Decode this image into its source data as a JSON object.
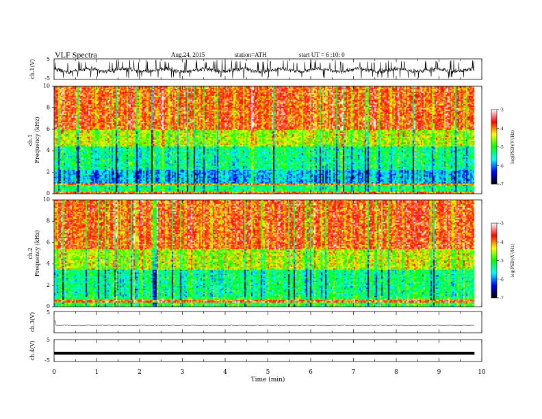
{
  "header": {
    "title": "VLF  Spectra",
    "date": "Aug.24, 2015",
    "station": "station=ATH",
    "start": "start  UT  =   6  :10: 0"
  },
  "chart_data": [
    {
      "type": "line",
      "ylabel": "ch.1(V)",
      "ylim": [
        -5,
        5
      ],
      "yticks": [
        "5",
        "-5"
      ],
      "xlim": [
        0,
        10
      ],
      "x_extent": [
        0,
        9.83
      ],
      "signal": "noisy waveform oscillating around about -0.5 V with frequent spikes reaching about 4 V and down to about -4.5 V"
    },
    {
      "type": "heatmap",
      "ylabel": "ch.1\nFrequency  (kHz)",
      "ylim": [
        0,
        10
      ],
      "yticks": [
        "0",
        "2",
        "4",
        "6",
        "8",
        "10"
      ],
      "xlim": [
        0,
        10
      ],
      "colorbar": {
        "label": "log(PSD)(V²/Hz)",
        "range": [
          -7,
          -3
        ],
        "ticks": [
          "-3",
          "-4",
          "-5",
          "-6",
          "-7"
        ]
      },
      "colors": {
        "-3": "#ffffff",
        "-4": "#ff0000",
        "-4.5": "#ffff00",
        "-5": "#00ff00",
        "-5.5": "#00ffff",
        "-6": "#0000ff",
        "-7": "#000000"
      },
      "description": "log(PSD) about -3.8 above about 6 kHz, -4.5 from 4.5 to 6 kHz, -5.3 from 2.3 to 4.5 kHz, -5.8 from 1 to 2.3 kHz, with horizontal tonal lines below 1 kHz"
    },
    {
      "type": "heatmap",
      "ylabel": "ch.2\nFrequency  (kHz)",
      "ylim": [
        0,
        10
      ],
      "yticks": [
        "0",
        "2",
        "4",
        "6",
        "8",
        "10"
      ],
      "xlim": [
        0,
        10
      ],
      "colorbar": {
        "label": "log(PSD)(V²/Hz)",
        "range": [
          -7,
          -3
        ],
        "ticks": [
          "-3",
          "-4",
          "-5",
          "-6",
          "-7"
        ]
      },
      "description": "log(PSD) about -3.8 above about 5.5 kHz, -4.5 from 3.5 to 5.5 kHz, -5.3 from 1 to 3.5 kHz, with horizontal tonal lines below 1 kHz"
    },
    {
      "type": "line",
      "ylabel": "ch.3(V)",
      "ylim": [
        -5,
        5
      ],
      "yticks": [
        "5"
      ],
      "xlim": [
        0,
        10
      ],
      "x_extent": [
        0,
        9.83
      ],
      "signal": "near-flat line at about -1.5 V with small fluctuations and a small spike near t = 0"
    },
    {
      "type": "line",
      "ylabel": "ch.4(V)",
      "xlabel": "Time  (min)",
      "ylim": [
        -5,
        5
      ],
      "yticks": [
        "5",
        "-5"
      ],
      "xlim": [
        0,
        10
      ],
      "xticks": [
        "0",
        "1",
        "2",
        "3",
        "4",
        "5",
        "6",
        "7",
        "8",
        "9",
        "10"
      ],
      "x_extent": [
        0,
        9.83
      ],
      "signal": "constant thick line at about -1.2 V"
    }
  ]
}
